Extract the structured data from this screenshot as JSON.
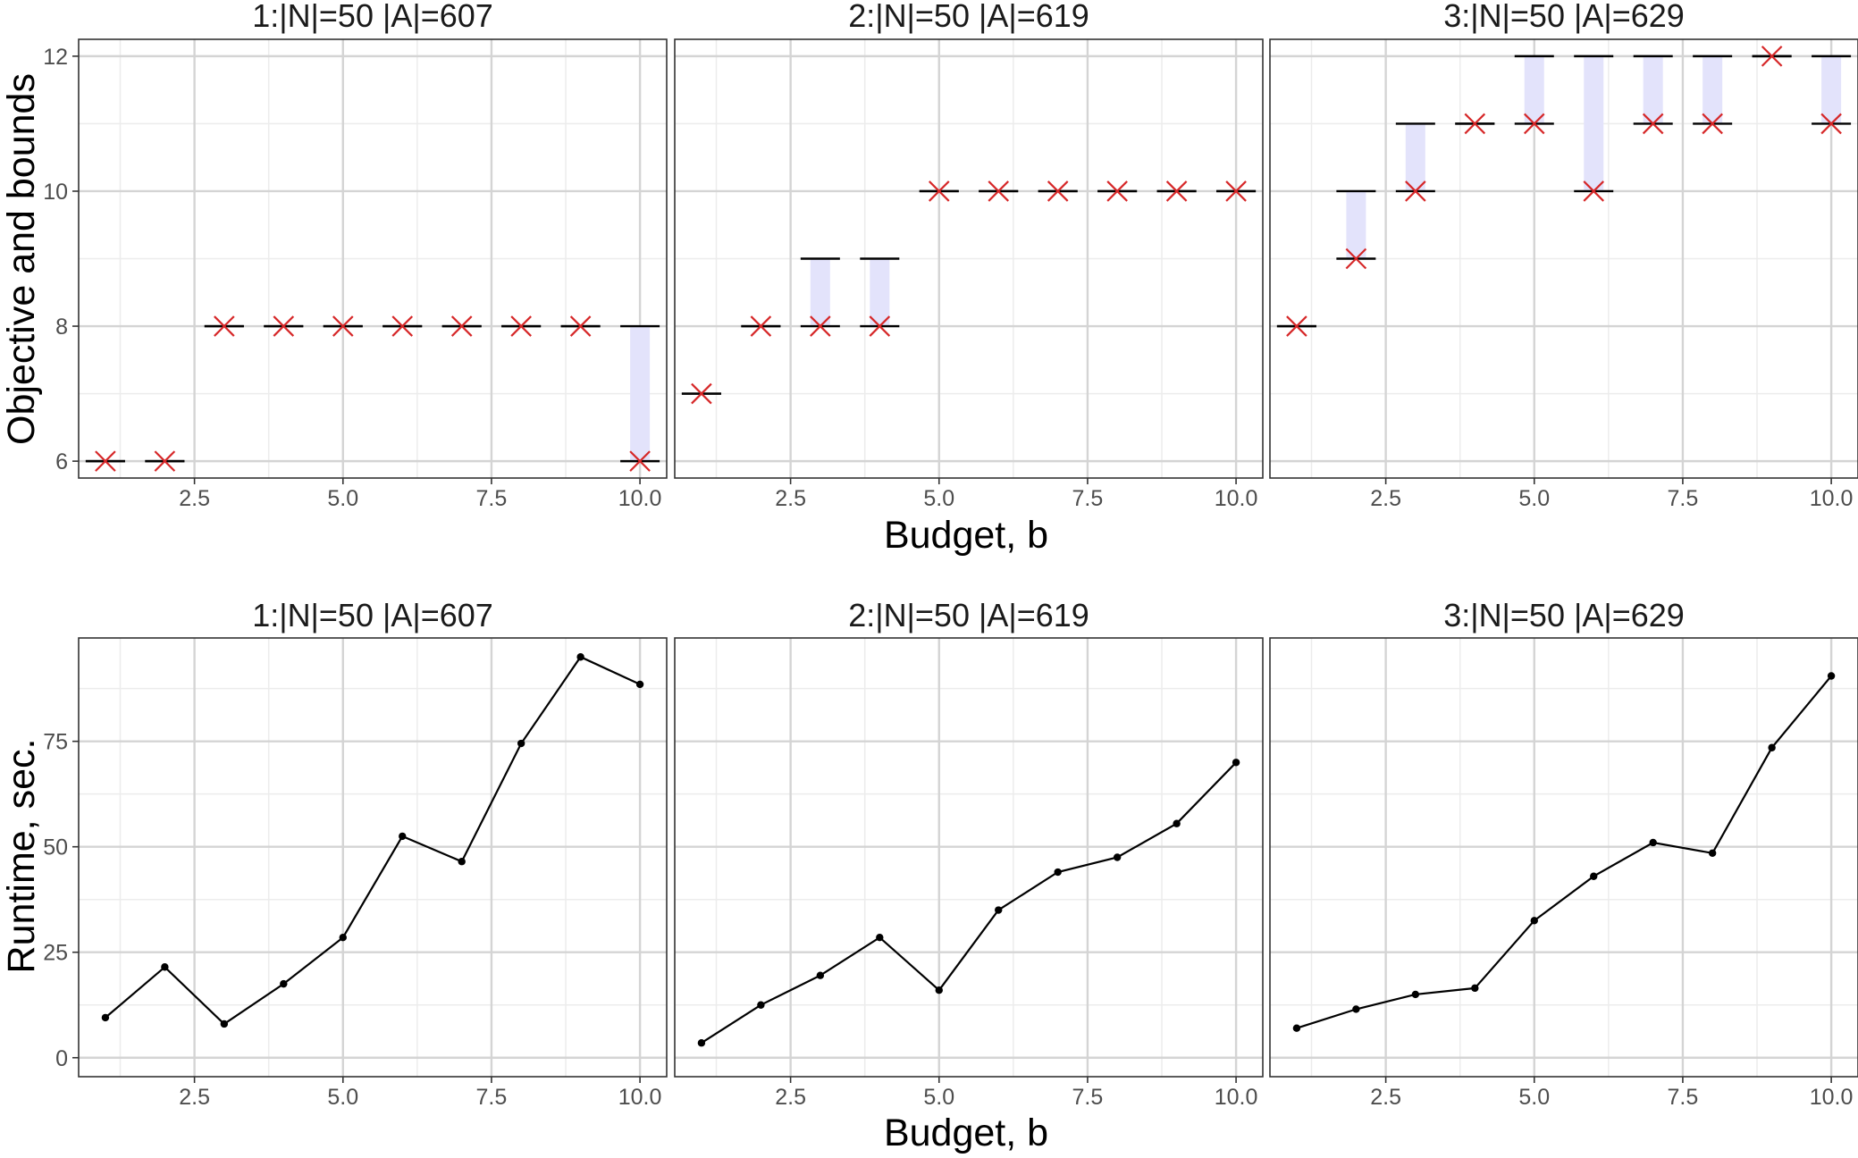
{
  "colors": {
    "panel_border": "#333333",
    "grid_major": "#d4d4d4",
    "grid_minor": "#ececec",
    "objective_marker": "#d62728",
    "bound_line": "#000000",
    "gap_fill": "#e3e3fb",
    "runtime_line": "#000000"
  },
  "shared_x": {
    "label": "Budget, b",
    "ticks": [
      "2.5",
      "5.0",
      "7.5",
      "10.0"
    ],
    "tick_values": [
      2.5,
      5.0,
      7.5,
      10.0
    ],
    "range": [
      0.55,
      10.45
    ]
  },
  "chart_data": [
    {
      "type": "scatter",
      "row": "top",
      "ylabel": "Objective and bounds",
      "ylim": [
        5.75,
        12.25
      ],
      "y_ticks": [
        "6",
        "8",
        "10",
        "12"
      ],
      "y_tick_values": [
        6,
        8,
        10,
        12
      ],
      "grid": true,
      "panels": [
        {
          "title": "1:|N|=50 |A|=607",
          "x": [
            1,
            2,
            3,
            4,
            5,
            6,
            7,
            8,
            9,
            10
          ],
          "lower": [
            6,
            6,
            8,
            8,
            8,
            8,
            8,
            8,
            8,
            6
          ],
          "upper": [
            6,
            6,
            8,
            8,
            8,
            8,
            8,
            8,
            8,
            8
          ]
        },
        {
          "title": "2:|N|=50 |A|=619",
          "x": [
            1,
            2,
            3,
            4,
            5,
            6,
            7,
            8,
            9,
            10
          ],
          "lower": [
            7,
            8,
            8,
            8,
            10,
            10,
            10,
            10,
            10,
            10
          ],
          "upper": [
            7,
            8,
            9,
            9,
            10,
            10,
            10,
            10,
            10,
            10
          ]
        },
        {
          "title": "3:|N|=50 |A|=629",
          "x": [
            1,
            2,
            3,
            4,
            5,
            6,
            7,
            8,
            9,
            10
          ],
          "lower": [
            8,
            9,
            10,
            11,
            11,
            10,
            11,
            11,
            12,
            11
          ],
          "upper": [
            8,
            10,
            11,
            11,
            12,
            12,
            12,
            12,
            12,
            12
          ]
        }
      ]
    },
    {
      "type": "line",
      "row": "bottom",
      "ylabel": "Runtime, sec.",
      "ylim": [
        -4.5,
        99.5
      ],
      "y_ticks": [
        "0",
        "25",
        "50",
        "75"
      ],
      "y_tick_values": [
        0,
        25,
        50,
        75
      ],
      "grid": true,
      "panels": [
        {
          "title": "1:|N|=50 |A|=607",
          "x": [
            1,
            2,
            3,
            4,
            5,
            6,
            7,
            8,
            9,
            10
          ],
          "values": [
            9.5,
            21.5,
            8,
            17.5,
            28.5,
            52.5,
            46.5,
            74.5,
            95,
            88.5
          ]
        },
        {
          "title": "2:|N|=50 |A|=619",
          "x": [
            1,
            2,
            3,
            4,
            5,
            6,
            7,
            8,
            9,
            10
          ],
          "values": [
            3.5,
            12.5,
            19.5,
            28.5,
            16,
            35,
            44,
            47.5,
            55.5,
            70
          ]
        },
        {
          "title": "3:|N|=50 |A|=629",
          "x": [
            1,
            2,
            3,
            4,
            5,
            6,
            7,
            8,
            9,
            10
          ],
          "values": [
            7,
            11.5,
            15,
            16.5,
            32.5,
            43,
            51,
            48.5,
            73.5,
            90.5
          ]
        }
      ]
    }
  ]
}
